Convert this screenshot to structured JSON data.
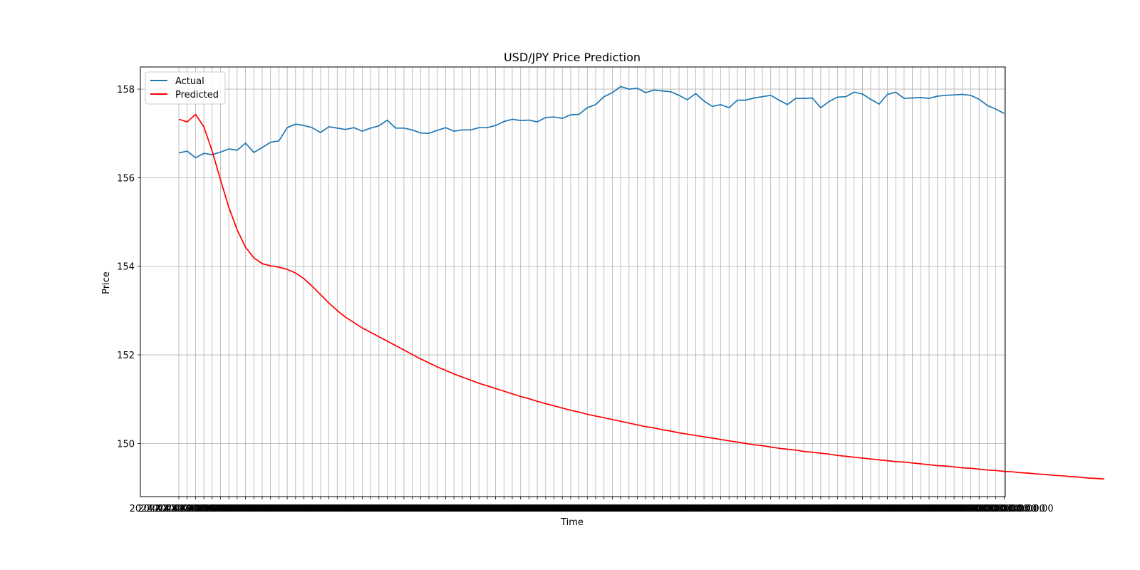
{
  "chart_data": {
    "type": "line",
    "title": "USD/JPY Price Prediction",
    "xlabel": "Time",
    "ylabel": "Price",
    "ylim": [
      148.8,
      158.5
    ],
    "yticks": [
      150,
      152,
      154,
      156,
      158
    ],
    "grid": true,
    "legend_position": "top-left",
    "x_tick_label_text": "2024-XX-XX 00:00:00",
    "series": [
      {
        "name": "Actual",
        "color": "#1f77b4",
        "values": [
          156.56,
          156.6,
          156.45,
          156.55,
          156.52,
          156.58,
          156.65,
          156.62,
          156.78,
          156.57,
          156.68,
          156.8,
          156.83,
          157.13,
          157.21,
          157.18,
          157.13,
          157.02,
          157.15,
          157.12,
          157.09,
          157.13,
          157.05,
          157.12,
          157.17,
          157.3,
          157.12,
          157.12,
          157.08,
          157.01,
          157.0,
          157.07,
          157.13,
          157.05,
          157.08,
          157.08,
          157.13,
          157.13,
          157.18,
          157.27,
          157.32,
          157.29,
          157.3,
          157.26,
          157.36,
          157.37,
          157.34,
          157.42,
          157.43,
          157.58,
          157.65,
          157.83,
          157.92,
          158.06,
          158.0,
          158.02,
          157.92,
          157.98,
          157.96,
          157.94,
          157.86,
          157.76,
          157.9,
          157.73,
          157.61,
          157.65,
          157.58,
          157.75,
          157.75,
          157.8,
          157.83,
          157.86,
          157.75,
          157.65,
          157.79,
          157.79,
          157.8,
          157.58,
          157.72,
          157.82,
          157.83,
          157.93,
          157.89,
          157.77,
          157.66,
          157.88,
          157.93,
          157.79,
          157.8,
          157.81,
          157.79,
          157.84,
          157.86,
          157.87,
          157.88,
          157.86,
          157.77,
          157.63,
          157.55,
          157.45
        ]
      },
      {
        "name": "Predicted",
        "color": "#ff0000",
        "values": [
          157.32,
          157.26,
          157.43,
          157.15,
          156.6,
          155.95,
          155.33,
          154.82,
          154.43,
          154.19,
          154.06,
          154.01,
          153.98,
          153.93,
          153.85,
          153.72,
          153.55,
          153.36,
          153.17,
          153.0,
          152.85,
          152.73,
          152.61,
          152.51,
          152.41,
          152.31,
          152.21,
          152.11,
          152.01,
          151.91,
          151.82,
          151.73,
          151.65,
          151.57,
          151.5,
          151.43,
          151.36,
          151.3,
          151.24,
          151.18,
          151.12,
          151.06,
          151.01,
          150.95,
          150.9,
          150.85,
          150.8,
          150.75,
          150.71,
          150.66,
          150.62,
          150.58,
          150.54,
          150.5,
          150.46,
          150.42,
          150.38,
          150.35,
          150.31,
          150.28,
          150.24,
          150.21,
          150.18,
          150.15,
          150.12,
          150.09,
          150.06,
          150.03,
          150.0,
          149.97,
          149.95,
          149.92,
          149.89,
          149.87,
          149.85,
          149.82,
          149.8,
          149.78,
          149.76,
          149.73,
          149.71,
          149.69,
          149.67,
          149.65,
          149.63,
          149.61,
          149.59,
          149.58,
          149.56,
          149.54,
          149.52,
          149.5,
          149.49,
          149.47,
          149.45,
          149.44,
          149.42,
          149.4,
          149.39,
          149.37,
          149.36,
          149.34,
          149.33,
          149.31,
          149.3,
          149.28,
          149.27,
          149.25,
          149.24,
          149.22,
          149.21,
          149.2
        ]
      }
    ]
  }
}
